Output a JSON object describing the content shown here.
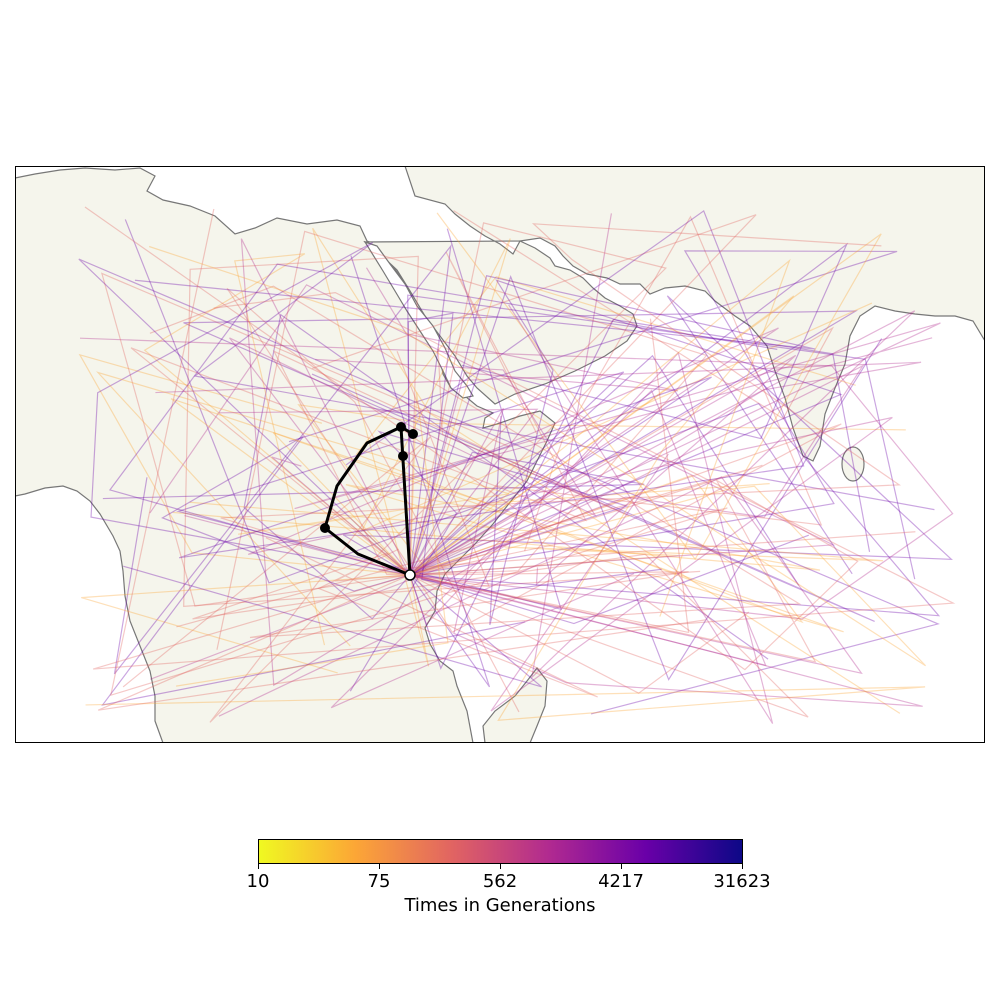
{
  "colors": {
    "land": "#f5f5ec",
    "sea": "#ffffff",
    "coastline": "#777777",
    "tree_path": "#000000",
    "sample_marker": "#ffffff",
    "colormap": [
      "#f0f921",
      "#fca636",
      "#e16462",
      "#b12a90",
      "#6a00a8",
      "#0d0887"
    ]
  },
  "legend": {
    "title": "Times in Generations",
    "ticks": [
      "10",
      "75",
      "562",
      "4217",
      "31623"
    ]
  },
  "map": {
    "projection": "plate-carree",
    "region": "East Africa, Arabian Peninsula, Indian Ocean",
    "features": [
      "coastline",
      "land",
      "lineage-paths",
      "ancestor-markers",
      "sample-marker"
    ]
  }
}
